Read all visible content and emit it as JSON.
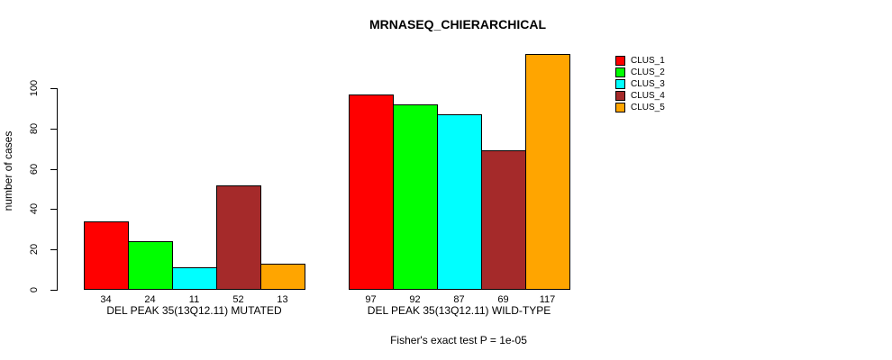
{
  "chart_data": {
    "type": "bar",
    "title": "MRNASEQ_CHIERARCHICAL",
    "ylabel": "number of cases",
    "xlabel": "",
    "ylim": [
      0,
      100
    ],
    "yticks": [
      0,
      20,
      40,
      60,
      80,
      100
    ],
    "grid": false,
    "legend_position": "top-right",
    "categories": [
      "DEL PEAK 35(13Q12.11) MUTATED",
      "DEL PEAK 35(13Q12.11) WILD-TYPE"
    ],
    "series": [
      {
        "name": "CLUS_1",
        "color": "#ff0000",
        "values": [
          34,
          97
        ]
      },
      {
        "name": "CLUS_2",
        "color": "#00ff00",
        "values": [
          24,
          92
        ]
      },
      {
        "name": "CLUS_3",
        "color": "#00ffff",
        "values": [
          11,
          87
        ]
      },
      {
        "name": "CLUS_4",
        "color": "#a52a2a",
        "values": [
          52,
          69
        ]
      },
      {
        "name": "CLUS_5",
        "color": "#ffa500",
        "values": [
          13,
          117
        ]
      }
    ],
    "bar_value_labels": true,
    "annotation": "Fisher's exact test P = 1e-05"
  }
}
